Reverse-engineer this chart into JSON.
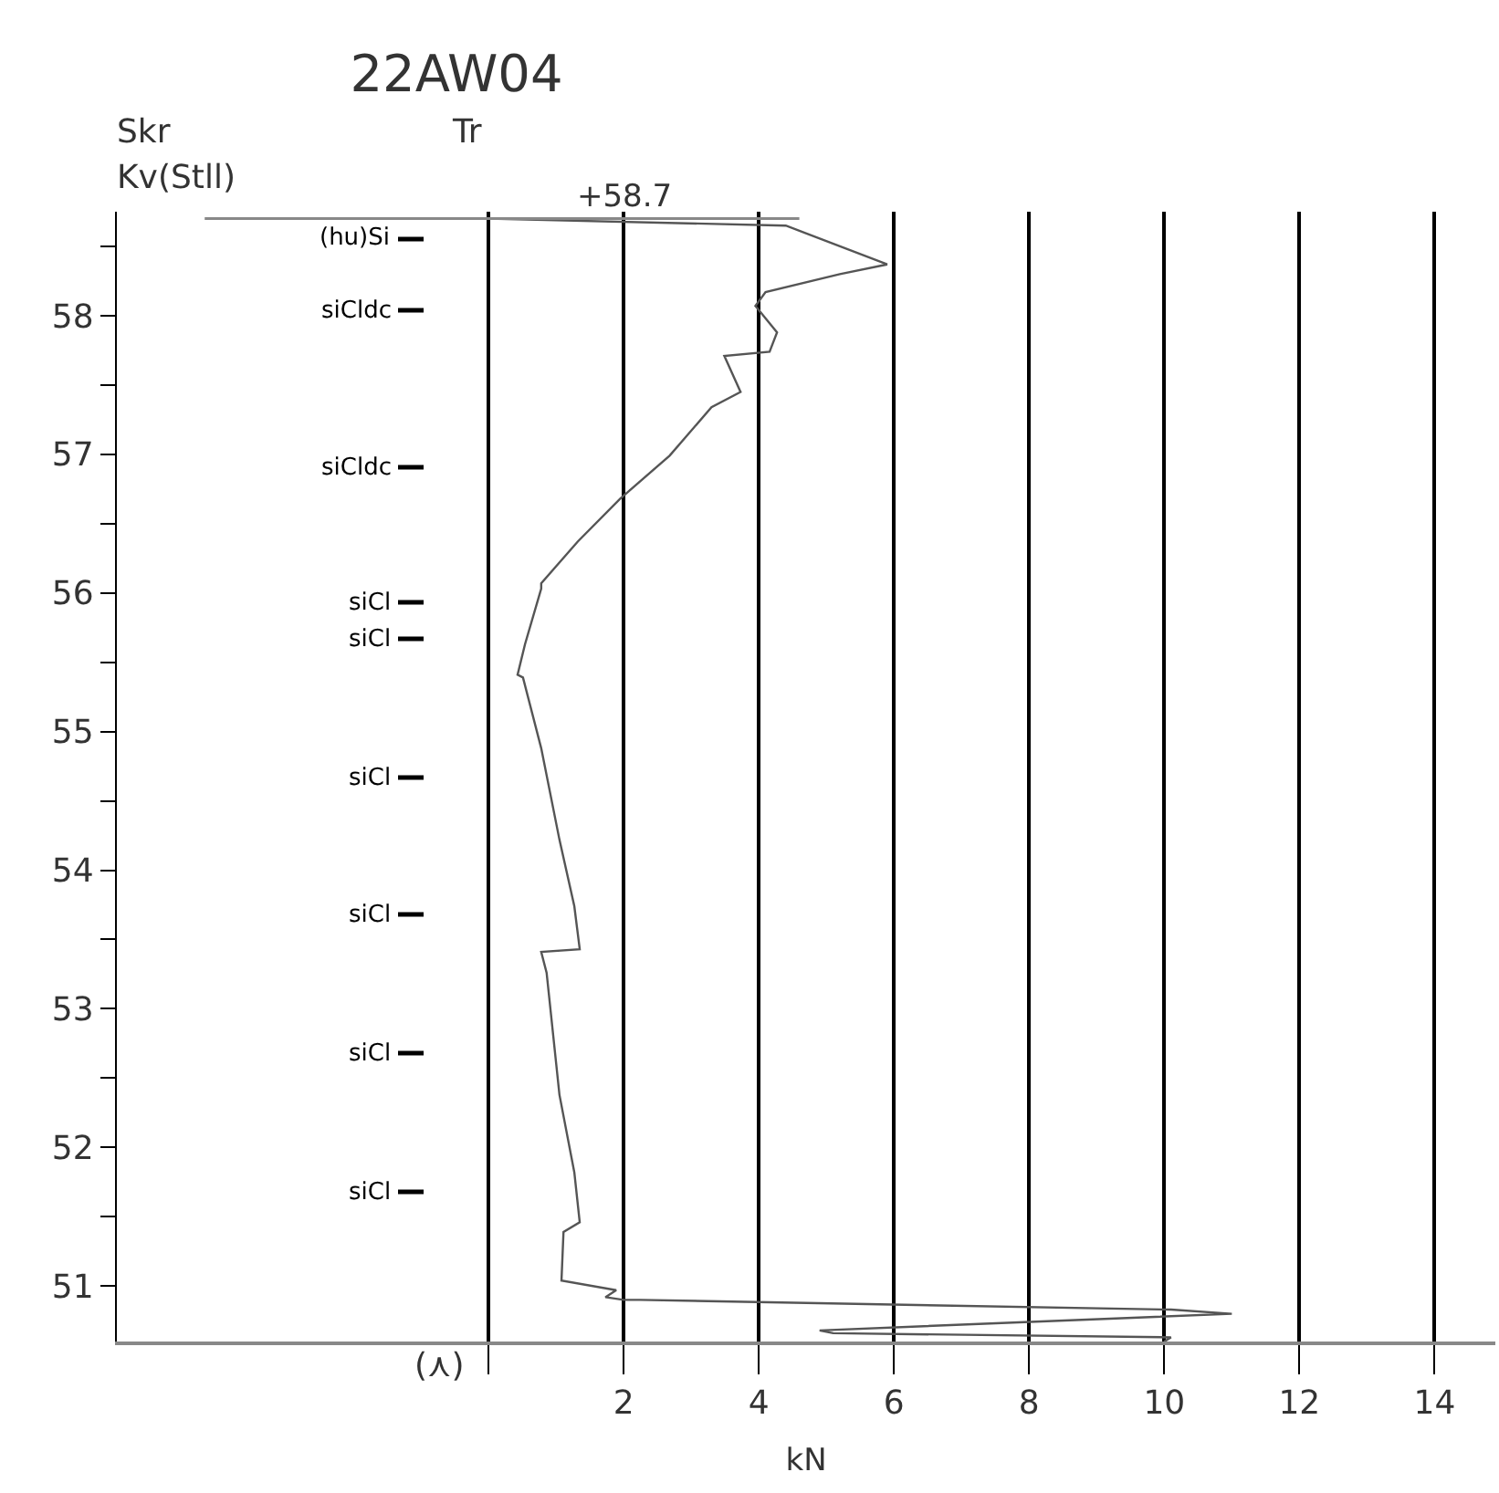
{
  "chart_data": {
    "type": "line",
    "title": "22AW04",
    "xlabel": "kN",
    "series": [
      {
        "color": "#555555",
        "x": [
          0,
          4.4,
          5.9,
          5.2,
          4.1,
          3.95,
          4.27,
          4.16,
          3.49,
          3.73,
          3.3,
          2.68,
          1.95,
          1.32,
          0.78,
          0.78,
          0.54,
          0.43,
          0.51,
          0.78,
          1.05,
          1.27,
          1.35,
          0.78,
          0.86,
          1.05,
          1.27,
          1.35,
          1.11,
          1.08,
          1.89,
          1.73,
          2.0,
          2.24,
          10.1,
          11.0,
          4.9,
          5.1,
          10.1,
          10.0
        ],
        "values": [
          58.7,
          58.65,
          58.37,
          58.3,
          58.17,
          58.07,
          57.88,
          57.74,
          57.71,
          57.45,
          57.34,
          56.99,
          56.68,
          56.37,
          56.07,
          56.03,
          55.63,
          55.41,
          55.39,
          54.88,
          54.22,
          53.74,
          53.43,
          53.41,
          53.26,
          52.38,
          51.82,
          51.46,
          51.39,
          51.04,
          50.97,
          50.92,
          50.9,
          50.9,
          50.83,
          50.8,
          50.68,
          50.66,
          50.63,
          50.6
        ]
      }
    ],
    "xlim": [
      -5.5,
      14.9
    ],
    "ylim": [
      50.6,
      58.75
    ],
    "xticks": [
      {
        "value": 0,
        "label": null
      },
      2,
      4,
      6,
      8,
      10,
      12,
      14
    ],
    "yticks": [
      51,
      {
        "value": 51.5,
        "label": null
      },
      52,
      {
        "value": 52.5,
        "label": null
      },
      53,
      {
        "value": 53.5,
        "label": null
      },
      54,
      {
        "value": 54.5,
        "label": null
      },
      55,
      {
        "value": 55.5,
        "label": null
      },
      56,
      {
        "value": 56.5,
        "label": null
      },
      57,
      {
        "value": 57.5,
        "label": null
      },
      58,
      {
        "value": 58.5,
        "label": null
      }
    ],
    "grid": "x",
    "marker": "none",
    "line_style": "solid",
    "ref_lines": [
      {
        "axis": "y",
        "value": 58.7,
        "label": "+58.7",
        "color": "#888888"
      }
    ],
    "annotations": [
      "Skr",
      "Kv(Stll)",
      "Tr",
      "(⋏)",
      "(hu)Si",
      "siCldc",
      "siCldc",
      "siCl",
      "siCl",
      "siCl",
      "siCl",
      "siCl",
      "siCl"
    ]
  }
}
